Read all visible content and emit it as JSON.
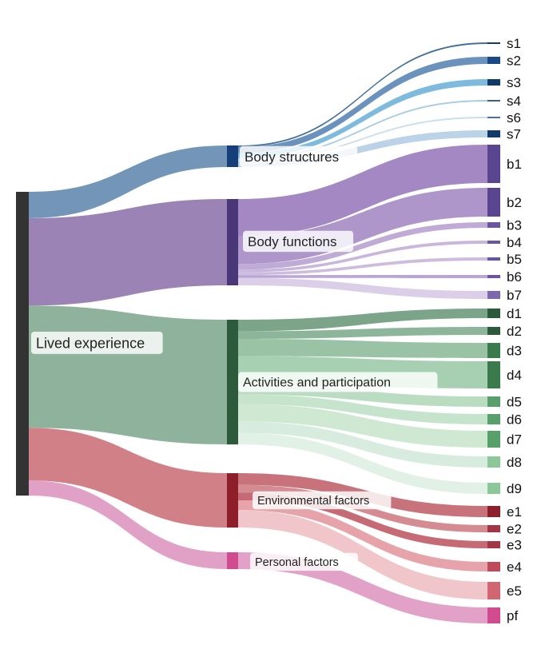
{
  "diagram": {
    "type": "sankey",
    "root": {
      "id": "lived",
      "label": "Lived experience",
      "color": "#333333"
    },
    "categories": [
      {
        "id": "body-structures",
        "label": "Body structures",
        "node_color": "#163f7a",
        "flow_color": "#5b84ac",
        "leaves": [
          {
            "id": "s1",
            "label": "s1",
            "value": 1,
            "node_color": "#0f3a6b",
            "flow_color": "#2f5f8f"
          },
          {
            "id": "s2",
            "label": "s2",
            "value": 4,
            "node_color": "#1a4a86",
            "flow_color": "#5a86b5"
          },
          {
            "id": "s3",
            "label": "s3",
            "value": 3,
            "node_color": "#0f3a6b",
            "flow_color": "#6fb3d9"
          },
          {
            "id": "s4",
            "label": "s4",
            "value": 1,
            "node_color": "#3a5f8a",
            "flow_color": "#9fc6df"
          },
          {
            "id": "s6",
            "label": "s6",
            "value": 1,
            "node_color": "#4d6f96",
            "flow_color": "#c5dbe9"
          },
          {
            "id": "s7",
            "label": "s7",
            "value": 4,
            "node_color": "#0f3a6b",
            "flow_color": "#b5cde3"
          }
        ]
      },
      {
        "id": "body-functions",
        "label": "Body functions",
        "node_color": "#4a3777",
        "flow_color": "#8a6da8",
        "leaves": [
          {
            "id": "b1",
            "label": "b1",
            "value": 20,
            "node_color": "#5a4690",
            "flow_color": "#9a7bbd"
          },
          {
            "id": "b2",
            "label": "b2",
            "value": 15,
            "node_color": "#5a4690",
            "flow_color": "#a58ac4"
          },
          {
            "id": "b3",
            "label": "b3",
            "value": 3,
            "node_color": "#6b55a3",
            "flow_color": "#b9a2d2"
          },
          {
            "id": "b4",
            "label": "b4",
            "value": 1.5,
            "node_color": "#6b55a3",
            "flow_color": "#c2aed8"
          },
          {
            "id": "b5",
            "label": "b5",
            "value": 1.5,
            "node_color": "#6b55a3",
            "flow_color": "#c8b5dc"
          },
          {
            "id": "b6",
            "label": "b6",
            "value": 1.5,
            "node_color": "#6b55a3",
            "flow_color": "#b49bd0"
          },
          {
            "id": "b7",
            "label": "b7",
            "value": 4,
            "node_color": "#7d68ad",
            "flow_color": "#d6c9e7"
          }
        ]
      },
      {
        "id": "activities",
        "label": "Activities and participation",
        "node_color": "#2d5a3b",
        "flow_color": "#7aa589",
        "leaves": [
          {
            "id": "d1",
            "label": "d1",
            "value": 6,
            "node_color": "#2d5a3b",
            "flow_color": "#6d9a7b"
          },
          {
            "id": "d2",
            "label": "d2",
            "value": 4,
            "node_color": "#2d5a3b",
            "flow_color": "#80ad8e"
          },
          {
            "id": "d3",
            "label": "d3",
            "value": 9,
            "node_color": "#3b7a4c",
            "flow_color": "#8fbd9c"
          },
          {
            "id": "d4",
            "label": "d4",
            "value": 15,
            "node_color": "#3b7a4c",
            "flow_color": "#9dcaa8"
          },
          {
            "id": "d5",
            "label": "d5",
            "value": 5,
            "node_color": "#58a06b",
            "flow_color": "#b2d8ba"
          },
          {
            "id": "d6",
            "label": "d6",
            "value": 5,
            "node_color": "#58a06b",
            "flow_color": "#c0e0c6"
          },
          {
            "id": "d7",
            "label": "d7",
            "value": 9,
            "node_color": "#58a06b",
            "flow_color": "#c9e5cd"
          },
          {
            "id": "d8",
            "label": "d8",
            "value": 6,
            "node_color": "#8cc79a",
            "flow_color": "#d3eadb"
          },
          {
            "id": "d9",
            "label": "d9",
            "value": 6,
            "node_color": "#8cc79a",
            "flow_color": "#dff0e3"
          }
        ]
      },
      {
        "id": "environmental",
        "label": "Environmental factors",
        "node_color": "#8c1f29",
        "flow_color": "#c96a73",
        "leaves": [
          {
            "id": "e1",
            "label": "e1",
            "value": 6,
            "node_color": "#8c1f29",
            "flow_color": "#c2646d"
          },
          {
            "id": "e2",
            "label": "e2",
            "value": 4,
            "node_color": "#a33544",
            "flow_color": "#cf7f86"
          },
          {
            "id": "e3",
            "label": "e3",
            "value": 4,
            "node_color": "#a33544",
            "flow_color": "#c05a66"
          },
          {
            "id": "e4",
            "label": "e4",
            "value": 5,
            "node_color": "#c14a5a",
            "flow_color": "#e39aa1"
          },
          {
            "id": "e5",
            "label": "e5",
            "value": 9,
            "node_color": "#d06670",
            "flow_color": "#efc0c5"
          }
        ]
      },
      {
        "id": "personal",
        "label": "Personal factors",
        "node_color": "#d14b8f",
        "flow_color": "#dc8fbb",
        "leaves": [
          {
            "id": "pf",
            "label": "pf",
            "value": 8,
            "node_color": "#d14b8f",
            "flow_color": "#df97c1"
          }
        ]
      }
    ]
  }
}
